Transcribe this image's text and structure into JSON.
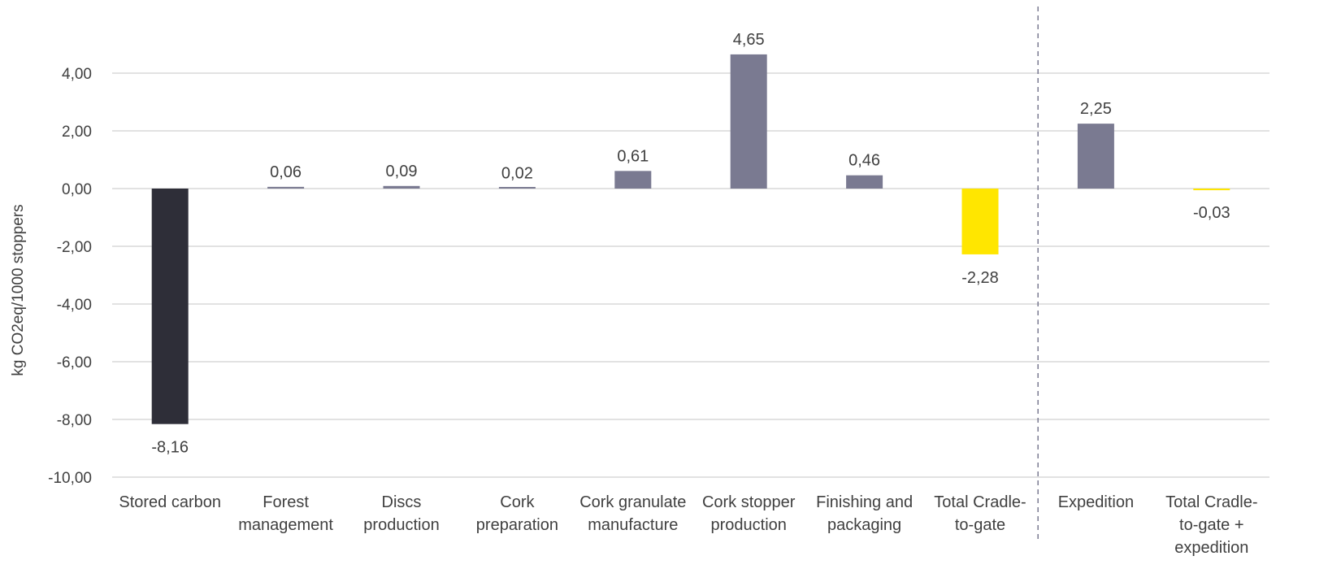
{
  "chart_data": {
    "type": "bar",
    "ylabel": "kg CO2eq/1000 stoppers",
    "ylim": [
      -10,
      4.6
    ],
    "yticks": [
      4,
      2,
      0,
      -2,
      -4,
      -6,
      -8,
      -10
    ],
    "ytick_labels": [
      "4,00",
      "2,00",
      "0,00",
      "-2,00",
      "-4,00",
      "-6,00",
      "-8,00",
      "-10,00"
    ],
    "grid": true,
    "categories": [
      [
        "Stored carbon"
      ],
      [
        "Forest",
        "management"
      ],
      [
        "Discs",
        "production"
      ],
      [
        "Cork",
        "preparation"
      ],
      [
        "Cork granulate",
        "manufacture"
      ],
      [
        "Cork stopper",
        "production"
      ],
      [
        "Finishing and",
        "packaging"
      ],
      [
        "Total Cradle-",
        "to-gate"
      ],
      [
        "Expedition"
      ],
      [
        "Total Cradle-",
        "to-gate +",
        "expedition"
      ]
    ],
    "values": [
      -8.16,
      0.06,
      0.09,
      0.02,
      0.61,
      4.65,
      0.46,
      -2.28,
      2.25,
      -0.03
    ],
    "data_labels": [
      "-8,16",
      "0,06",
      "0,09",
      "0,02",
      "0,61",
      "4,65",
      "0,46",
      "-2,28",
      "2,25",
      "-0,03"
    ],
    "bar_colors": [
      "#2e2e38",
      "#7a7a91",
      "#7a7a91",
      "#7a7a91",
      "#7a7a91",
      "#7a7a91",
      "#7a7a91",
      "#ffe600",
      "#7a7a91",
      "#ffe600"
    ],
    "divider": {
      "style": "dashed",
      "color": "#7a7a91",
      "between": [
        "Total Cradle-to-gate",
        "Expedition"
      ]
    },
    "gridline_color": "#d9d9d9",
    "text_color": "#404040"
  }
}
